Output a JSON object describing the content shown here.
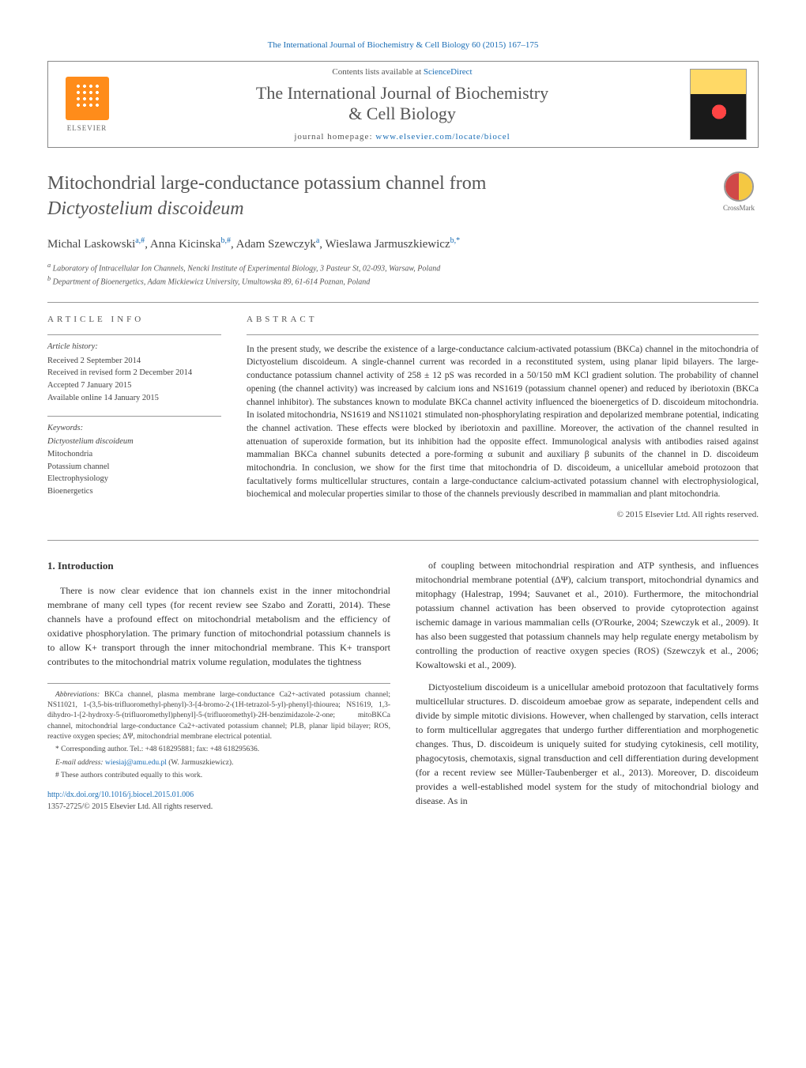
{
  "header": {
    "citation_link": "The International Journal of Biochemistry & Cell Biology 60 (2015) 167–175",
    "contents_prefix": "Contents lists available at ",
    "contents_link": "ScienceDirect",
    "journal_name_line1": "The International Journal of Biochemistry",
    "journal_name_line2": "& Cell Biology",
    "homepage_prefix": "journal homepage: ",
    "homepage_link": "www.elsevier.com/locate/biocel",
    "elsevier_label": "ELSEVIER",
    "crossmark_label": "CrossMark"
  },
  "title": {
    "line1": "Mitochondrial large-conductance potassium channel from",
    "line2_italic": "Dictyostelium discoideum"
  },
  "authors": {
    "a1_name": "Michal Laskowski",
    "a1_sup": "a,#",
    "a2_name": "Anna Kicinska",
    "a2_sup": "b,#",
    "a3_name": "Adam Szewczyk",
    "a3_sup": "a",
    "a4_name": "Wieslawa Jarmuszkiewicz",
    "a4_sup": "b,*"
  },
  "affiliations": {
    "a": "Laboratory of Intracellular Ion Channels, Nencki Institute of Experimental Biology, 3 Pasteur St, 02-093, Warsaw, Poland",
    "b": "Department of Bioenergetics, Adam Mickiewicz University, Umultowska 89, 61-614 Poznan, Poland"
  },
  "article_info": {
    "heading": "ARTICLE INFO",
    "history_label": "Article history:",
    "received": "Received 2 September 2014",
    "revised": "Received in revised form 2 December 2014",
    "accepted": "Accepted 7 January 2015",
    "online": "Available online 14 January 2015",
    "keywords_label": "Keywords:",
    "kw1": "Dictyostelium discoideum",
    "kw2": "Mitochondria",
    "kw3": "Potassium channel",
    "kw4": "Electrophysiology",
    "kw5": "Bioenergetics"
  },
  "abstract": {
    "heading": "ABSTRACT",
    "text": "In the present study, we describe the existence of a large-conductance calcium-activated potassium (BKCa) channel in the mitochondria of Dictyostelium discoideum. A single-channel current was recorded in a reconstituted system, using planar lipid bilayers. The large-conductance potassium channel activity of 258 ± 12 pS was recorded in a 50/150 mM KCl gradient solution. The probability of channel opening (the channel activity) was increased by calcium ions and NS1619 (potassium channel opener) and reduced by iberiotoxin (BKCa channel inhibitor). The substances known to modulate BKCa channel activity influenced the bioenergetics of D. discoideum mitochondria. In isolated mitochondria, NS1619 and NS11021 stimulated non-phosphorylating respiration and depolarized membrane potential, indicating the channel activation. These effects were blocked by iberiotoxin and paxilline. Moreover, the activation of the channel resulted in attenuation of superoxide formation, but its inhibition had the opposite effect. Immunological analysis with antibodies raised against mammalian BKCa channel subunits detected a pore-forming α subunit and auxiliary β subunits of the channel in D. discoideum mitochondria. In conclusion, we show for the first time that mitochondria of D. discoideum, a unicellular ameboid protozoon that facultatively forms multicellular structures, contain a large-conductance calcium-activated potassium channel with electrophysiological, biochemical and molecular properties similar to those of the channels previously described in mammalian and plant mitochondria.",
    "copyright": "© 2015 Elsevier Ltd. All rights reserved."
  },
  "body": {
    "intro_heading": "1. Introduction",
    "left_p1": "There is now clear evidence that ion channels exist in the inner mitochondrial membrane of many cell types (for recent review see Szabo and Zoratti, 2014). These channels have a profound effect on mitochondrial metabolism and the efficiency of oxidative phosphorylation. The primary function of mitochondrial potassium channels is to allow K+ transport through the inner mitochondrial membrane. This K+ transport contributes to the mitochondrial matrix volume regulation, modulates the tightness",
    "right_p1": "of coupling between mitochondrial respiration and ATP synthesis, and influences mitochondrial membrane potential (ΔΨ), calcium transport, mitochondrial dynamics and mitophagy (Halestrap, 1994; Sauvanet et al., 2010). Furthermore, the mitochondrial potassium channel activation has been observed to provide cytoprotection against ischemic damage in various mammalian cells (O'Rourke, 2004; Szewczyk et al., 2009). It has also been suggested that potassium channels may help regulate energy metabolism by controlling the production of reactive oxygen species (ROS) (Szewczyk et al., 2006; Kowaltowski et al., 2009).",
    "right_p2": "Dictyostelium discoideum is a unicellular ameboid protozoon that facultatively forms multicellular structures. D. discoideum amoebae grow as separate, independent cells and divide by simple mitotic divisions. However, when challenged by starvation, cells interact to form multicellular aggregates that undergo further differentiation and morphogenetic changes. Thus, D. discoideum is uniquely suited for studying cytokinesis, cell motility, phagocytosis, chemotaxis, signal transduction and cell differentiation during development (for a recent review see Müller-Taubenberger et al., 2013). Moreover, D. discoideum provides a well-established model system for the study of mitochondrial biology and disease. As in"
  },
  "footnotes": {
    "abbrev_label": "Abbreviations:",
    "abbrev_text": "BKCa channel, plasma membrane large-conductance Ca2+-activated potassium channel; NS11021, 1-(3,5-bis-trifluoromethyl-phenyl)-3-[4-bromo-2-(1H-tetrazol-5-yl)-phenyl]-thiourea; NS1619, 1,3-dihydro-1-[2-hydroxy-5-(trifluoromethyl)phenyl]-5-(trifluoromethyl)-2H-benzimidazole-2-one; mitoBKCa channel, mitochondrial large-conductance Ca2+-activated potassium channel; PLB, planar lipid bilayer; ROS, reactive oxygen species; ΔΨ, mitochondrial membrane electrical potential.",
    "corr_label": "* Corresponding author. Tel.: +48 618295881; fax: +48 618295636.",
    "email_label": "E-mail address:",
    "email": "wiesiaj@amu.edu.pl",
    "email_name": "(W. Jarmuszkiewicz).",
    "hash_note": "# These authors contributed equally to this work.",
    "doi": "http://dx.doi.org/10.1016/j.biocel.2015.01.006",
    "issn": "1357-2725/© 2015 Elsevier Ltd. All rights reserved."
  },
  "colors": {
    "link": "#1a6db5",
    "text": "#333333",
    "muted": "#555555",
    "border": "#999999",
    "elsevier_orange": "#ff8c1a"
  }
}
